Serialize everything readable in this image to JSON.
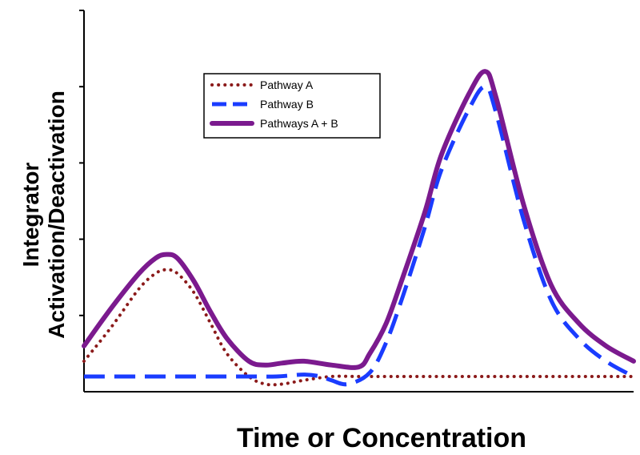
{
  "chart_data": {
    "type": "line",
    "title": "",
    "xlabel": "Time or Concentration",
    "ylabel_line1": "Integrator",
    "ylabel_line2": "Activation/Deactivation",
    "xlim": [
      0,
      100
    ],
    "ylim": [
      0,
      10
    ],
    "y_ticks": [
      2,
      4,
      6,
      8,
      10
    ],
    "grid": false,
    "legend_position": "top-left",
    "series": [
      {
        "name": "Pathway A",
        "color": "#8b1a1a",
        "style": "dotted",
        "x": [
          0,
          5,
          10,
          13,
          15,
          17,
          20,
          23,
          26,
          30,
          33,
          36,
          40,
          45,
          50,
          55,
          60,
          65,
          70,
          75,
          80,
          85,
          90,
          95,
          100
        ],
        "y": [
          0.8,
          1.7,
          2.7,
          3.1,
          3.2,
          3.1,
          2.6,
          1.8,
          1.0,
          0.4,
          0.2,
          0.2,
          0.3,
          0.4,
          0.4,
          0.4,
          0.4,
          0.4,
          0.4,
          0.4,
          0.4,
          0.4,
          0.4,
          0.4,
          0.4
        ]
      },
      {
        "name": "Pathway B",
        "color": "#1a3cff",
        "style": "dashed",
        "x": [
          0,
          10,
          20,
          30,
          35,
          40,
          43,
          45,
          48,
          52,
          55,
          58,
          62,
          65,
          70,
          73,
          75,
          80,
          85,
          90,
          95,
          100
        ],
        "y": [
          0.4,
          0.4,
          0.4,
          0.4,
          0.4,
          0.45,
          0.4,
          0.3,
          0.2,
          0.5,
          1.3,
          2.5,
          4.3,
          5.8,
          7.4,
          8.0,
          7.3,
          4.5,
          2.4,
          1.4,
          0.8,
          0.4
        ]
      },
      {
        "name": "Pathways A + B",
        "color": "#7b1a8e",
        "style": "solid",
        "x": [
          0,
          5,
          10,
          13,
          15,
          17,
          20,
          23,
          26,
          30,
          33,
          36,
          40,
          45,
          50,
          52,
          55,
          58,
          62,
          65,
          70,
          73,
          75,
          80,
          85,
          90,
          95,
          100
        ],
        "y": [
          1.2,
          2.2,
          3.1,
          3.5,
          3.6,
          3.5,
          2.9,
          2.1,
          1.4,
          0.8,
          0.7,
          0.75,
          0.8,
          0.7,
          0.65,
          1.0,
          1.8,
          3.0,
          4.7,
          6.2,
          7.8,
          8.4,
          7.7,
          4.9,
          2.8,
          1.8,
          1.2,
          0.8
        ]
      }
    ]
  }
}
